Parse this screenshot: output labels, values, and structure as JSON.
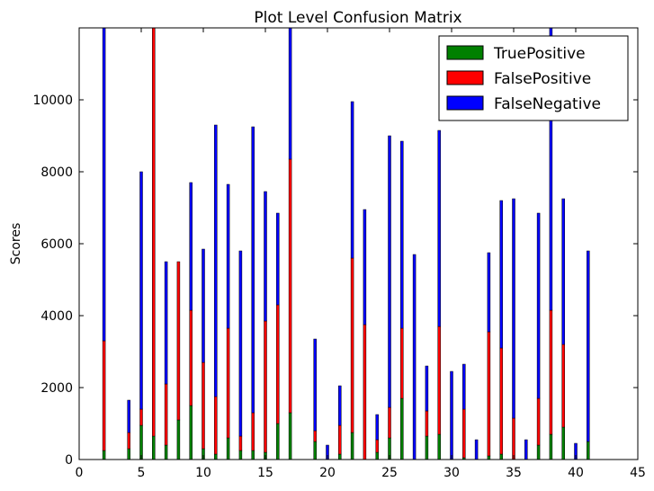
{
  "chart_data": {
    "type": "bar",
    "stacked": true,
    "title": "Plot Level Confusion Matrix",
    "xlabel": "",
    "ylabel": "Scores",
    "xlim": [
      0,
      45
    ],
    "ylim": [
      0,
      12000
    ],
    "xticks": [
      0,
      5,
      10,
      15,
      20,
      25,
      30,
      35,
      40,
      45
    ],
    "yticks": [
      0,
      2000,
      4000,
      6000,
      8000,
      10000
    ],
    "legend_position": "top-right",
    "grid": false,
    "x": [
      1,
      2,
      3,
      4,
      5,
      6,
      7,
      8,
      9,
      10,
      11,
      12,
      13,
      14,
      15,
      16,
      17,
      18,
      19,
      20,
      21,
      22,
      23,
      24,
      25,
      26,
      27,
      28,
      29,
      30,
      31,
      32,
      33,
      34,
      35,
      36,
      37,
      38,
      39,
      40,
      41
    ],
    "series": [
      {
        "name": "TruePositive",
        "color": "#008000",
        "values": [
          0,
          250,
          0,
          300,
          950,
          650,
          400,
          1100,
          1500,
          300,
          150,
          600,
          250,
          250,
          200,
          1000,
          1300,
          0,
          500,
          0,
          150,
          750,
          0,
          200,
          600,
          1700,
          0,
          650,
          700,
          0,
          50,
          0,
          100,
          150,
          0,
          0,
          400,
          700,
          900,
          0,
          500
        ]
      },
      {
        "name": "FalsePositive",
        "color": "#ff0000",
        "values": [
          0,
          3050,
          0,
          450,
          450,
          11350,
          1700,
          4400,
          2650,
          2400,
          1600,
          3050,
          400,
          1050,
          3650,
          3300,
          7050,
          0,
          300,
          0,
          800,
          4850,
          3750,
          350,
          850,
          1950,
          0,
          700,
          3000,
          0,
          1350,
          0,
          3450,
          2950,
          1150,
          0,
          1300,
          3450,
          2300,
          0,
          0
        ]
      },
      {
        "name": "FalseNegative",
        "color": "#0000ff",
        "values": [
          0,
          8700,
          0,
          900,
          6600,
          0,
          3400,
          0,
          3550,
          3150,
          7550,
          4000,
          5150,
          7950,
          3600,
          2550,
          3650,
          0,
          2550,
          400,
          1100,
          4350,
          3200,
          700,
          7550,
          5200,
          5700,
          1250,
          5450,
          2450,
          1250,
          550,
          2200,
          4100,
          6100,
          550,
          5150,
          7850,
          4050,
          450,
          5300
        ]
      }
    ]
  }
}
